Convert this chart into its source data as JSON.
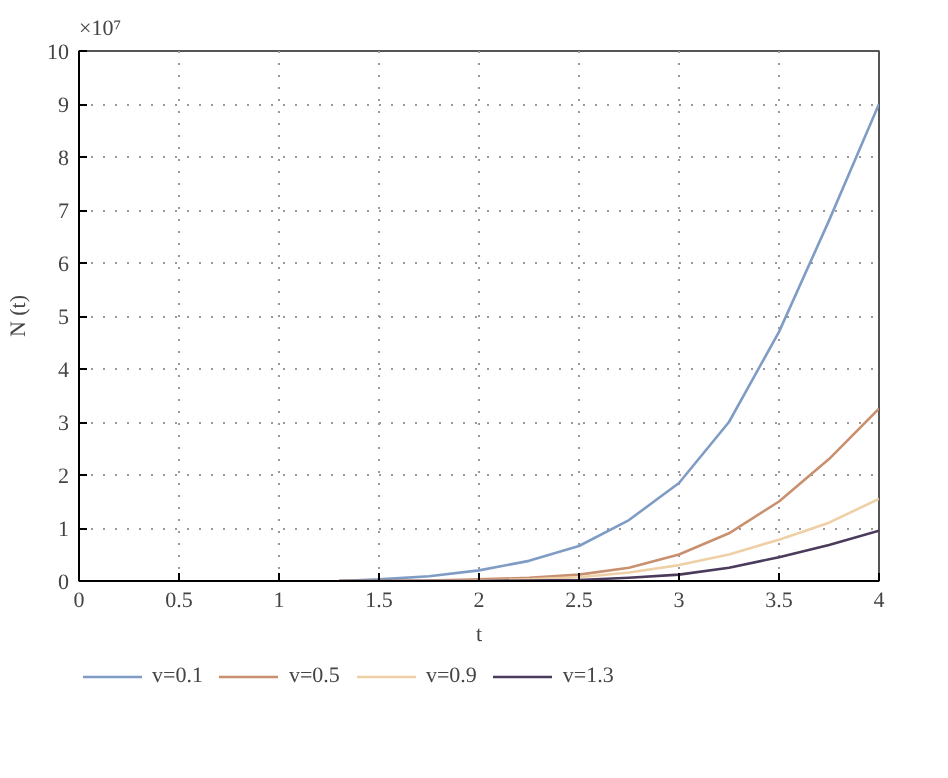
{
  "chart_data": {
    "type": "line",
    "xlabel": "t",
    "ylabel": "N (t)",
    "annotations": [
      "×10⁷"
    ],
    "x": [
      1.3,
      1.5,
      1.75,
      2,
      2.25,
      2.5,
      2.75,
      3,
      3.25,
      3.5,
      3.75,
      4
    ],
    "series": [
      {
        "name": "v=0.1",
        "color": "#7f9cc5",
        "values": [
          0,
          0.03,
          0.09,
          0.2,
          0.38,
          0.66,
          1.15,
          1.85,
          3.0,
          4.7,
          6.8,
          9.0
        ]
      },
      {
        "name": "v=0.5",
        "color": "#c8906e",
        "values": [
          0,
          0,
          0.01,
          0.03,
          0.06,
          0.12,
          0.25,
          0.5,
          0.9,
          1.5,
          2.3,
          3.25
        ]
      },
      {
        "name": "v=0.9",
        "color": "#efcfa6",
        "values": [
          0,
          0,
          0,
          0.01,
          0.03,
          0.07,
          0.16,
          0.3,
          0.5,
          0.78,
          1.1,
          1.55
        ]
      },
      {
        "name": "v=1.3",
        "color": "#4a3a5c",
        "values": [
          0,
          0,
          0,
          0,
          0.01,
          0.02,
          0.06,
          0.12,
          0.25,
          0.45,
          0.68,
          0.95
        ]
      }
    ],
    "xlim": [
      0,
      4
    ],
    "ylim": [
      0,
      10
    ],
    "xticks": [
      0,
      0.5,
      1,
      1.5,
      2,
      2.5,
      3,
      3.5,
      4
    ],
    "yticks": [
      0,
      1,
      2,
      3,
      4,
      5,
      6,
      7,
      8,
      9,
      10
    ],
    "grid": true,
    "legend": "bottom",
    "line_style": "solid"
  }
}
